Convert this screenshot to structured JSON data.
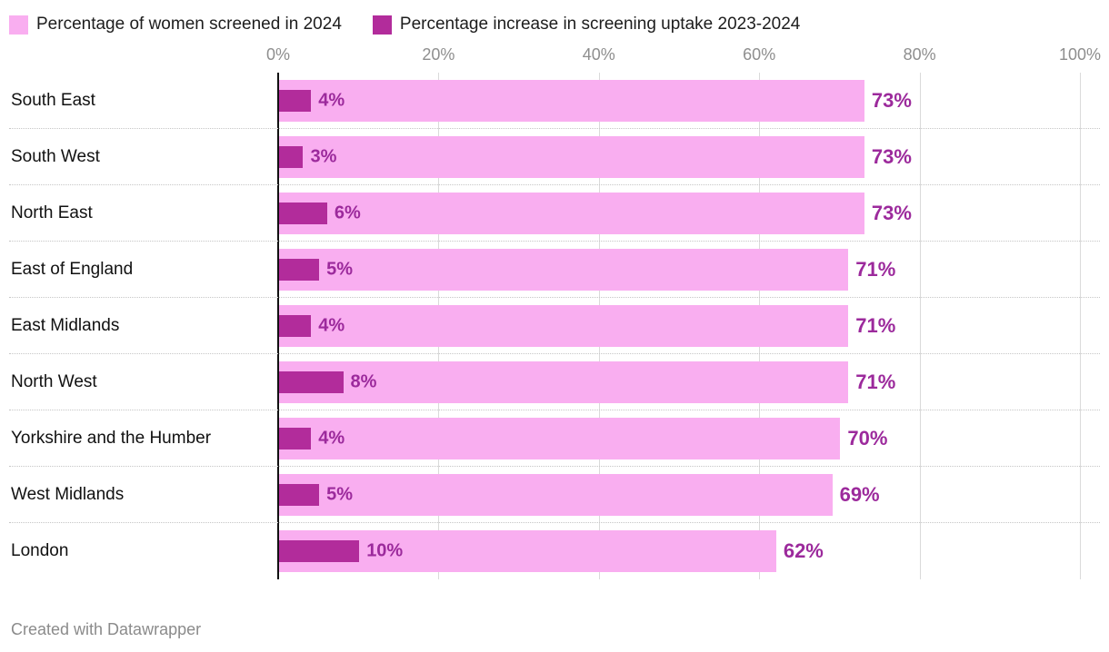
{
  "legend": {
    "items": [
      {
        "label": "Percentage of women screened in 2024",
        "color": "#f9aef0"
      },
      {
        "label": "Percentage increase in screening uptake 2023-2024",
        "color": "#b22c9b"
      }
    ]
  },
  "chart_data": {
    "type": "bar",
    "orientation": "horizontal",
    "title": "",
    "xlabel": "",
    "ylabel": "",
    "xlim": [
      0,
      100
    ],
    "x_ticks": [
      "0%",
      "20%",
      "40%",
      "60%",
      "80%",
      "100%"
    ],
    "grid": true,
    "value_suffix": "%",
    "categories": [
      "South East",
      "South West",
      "North East",
      "East of England",
      "East Midlands",
      "North West",
      "Yorkshire and the Humber",
      "West Midlands",
      "London"
    ],
    "series": [
      {
        "name": "Percentage of women screened in 2024",
        "color": "#f9aef0",
        "label_color": "#9c2a9c",
        "values": [
          73,
          73,
          73,
          71,
          71,
          71,
          70,
          69,
          62
        ]
      },
      {
        "name": "Percentage increase in screening uptake 2023-2024",
        "color": "#b22c9b",
        "label_color": "#9c2a9c",
        "values": [
          4,
          3,
          6,
          5,
          4,
          8,
          4,
          5,
          10
        ]
      }
    ]
  },
  "footer": {
    "credit": "Created with Datawrapper"
  }
}
